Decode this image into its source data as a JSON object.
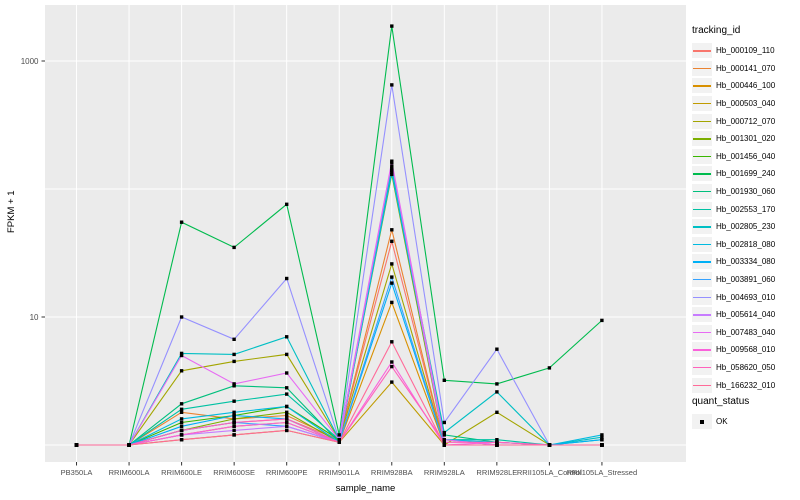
{
  "chart_data": {
    "type": "line",
    "title": "",
    "xlabel": "sample_name",
    "ylabel": "FPKM + 1",
    "y_scale": "log10",
    "ylim": [
      0.85,
      2500
    ],
    "y_tick_labels": [
      "10",
      "1000"
    ],
    "y_tick_values": [
      10,
      1000
    ],
    "y_gridline_values": [
      1,
      10,
      100,
      1000
    ],
    "grid": true,
    "panel_background": "#EBEBEB",
    "gridline_color": "#FFFFFF",
    "tick_label_color": "#4d4d4d",
    "legend_position": "right",
    "legend_titles": {
      "color": "tracking_id",
      "shape": "quant_status"
    },
    "point_marker": {
      "shape": "square",
      "color": "#000000",
      "label": "OK"
    },
    "categories": [
      "PB350LA",
      "RRIM600LA",
      "RRIM600LE",
      "RRIM600SE",
      "RRIM600PE",
      "RRIM901LA",
      "RRIM928BA",
      "RRIM928LA",
      "RRIM928LE",
      "RRII105LA_Control",
      "RRII105LA_Stressed"
    ],
    "series": [
      {
        "name": "Hb_000109_110",
        "color": "#F8766D",
        "values": [
          1,
          1,
          1.3,
          1.5,
          1.6,
          1.1,
          39,
          1,
          1,
          1,
          1
        ]
      },
      {
        "name": "Hb_000141_070",
        "color": "#EA8331",
        "values": [
          1,
          1,
          1.8,
          1.6,
          1.7,
          1.1,
          48,
          1,
          1,
          1,
          1
        ]
      },
      {
        "name": "Hb_000446_100",
        "color": "#D89000",
        "values": [
          1,
          1,
          1.2,
          1.4,
          1.5,
          1.05,
          13,
          1,
          1,
          1,
          1
        ]
      },
      {
        "name": "Hb_000503_040",
        "color": "#C09B00",
        "values": [
          1,
          1,
          1.1,
          1.2,
          1.3,
          1.05,
          3.1,
          1,
          1,
          1,
          1
        ]
      },
      {
        "name": "Hb_000712_070",
        "color": "#A3A500",
        "values": [
          1,
          1,
          3.8,
          4.5,
          5.1,
          1.1,
          26,
          1,
          1.8,
          1,
          1
        ]
      },
      {
        "name": "Hb_001301_020",
        "color": "#7CAE00",
        "values": [
          1,
          1,
          1.3,
          1.6,
          1.8,
          1.05,
          130,
          1,
          1,
          1,
          1
        ]
      },
      {
        "name": "Hb_001456_040",
        "color": "#39B600",
        "values": [
          1,
          1,
          1.5,
          1.7,
          2,
          1.1,
          145,
          1.1,
          1,
          1,
          1
        ]
      },
      {
        "name": "Hb_001699_240",
        "color": "#00BB4E",
        "values": [
          1,
          1,
          55,
          35,
          76,
          1.2,
          1875,
          3.2,
          3,
          4,
          9.4
        ]
      },
      {
        "name": "Hb_001930_060",
        "color": "#00BF7D",
        "values": [
          1,
          1,
          2.1,
          2.9,
          2.8,
          1.05,
          140,
          1.2,
          1.05,
          1,
          1
        ]
      },
      {
        "name": "Hb_002553_170",
        "color": "#00C1A3",
        "values": [
          1,
          1,
          1.9,
          2.2,
          2.5,
          1.1,
          150,
          1.1,
          1.1,
          1,
          1.1
        ]
      },
      {
        "name": "Hb_002805_230",
        "color": "#00BFC4",
        "values": [
          1,
          1,
          5.2,
          5.1,
          7,
          1.1,
          140,
          1.25,
          2.6,
          1,
          1.15
        ]
      },
      {
        "name": "Hb_002818_080",
        "color": "#00BAE0",
        "values": [
          1,
          1,
          1.6,
          1.8,
          2,
          1.05,
          135,
          1.1,
          1.05,
          1,
          1.2
        ]
      },
      {
        "name": "Hb_003334_080",
        "color": "#00B0F6",
        "values": [
          1,
          1,
          1.4,
          1.7,
          1.6,
          1.05,
          18.4,
          1,
          1,
          1,
          1.1
        ]
      },
      {
        "name": "Hb_003891_060",
        "color": "#35A2FF",
        "values": [
          1,
          1,
          1.3,
          1.5,
          1.4,
          1.05,
          20.5,
          1,
          1,
          1,
          1
        ]
      },
      {
        "name": "Hb_004693_010",
        "color": "#9590FF",
        "values": [
          1,
          1,
          10,
          6.7,
          20,
          1.1,
          650,
          1.5,
          5.6,
          1,
          1
        ]
      },
      {
        "name": "Hb_005614_040",
        "color": "#C77CFF",
        "values": [
          1,
          1,
          1.2,
          1.3,
          1.4,
          1.05,
          160,
          1,
          1,
          1,
          1
        ]
      },
      {
        "name": "Hb_007483_040",
        "color": "#E76BF3",
        "values": [
          1,
          1,
          5,
          3,
          3.65,
          1.1,
          165,
          1.1,
          1,
          1,
          1
        ]
      },
      {
        "name": "Hb_009568_010",
        "color": "#FA62DB",
        "values": [
          1,
          1,
          1.2,
          1.4,
          1.5,
          1.05,
          4.45,
          1,
          1.05,
          1,
          1
        ]
      },
      {
        "name": "Hb_058620_050",
        "color": "#FF62BC",
        "values": [
          1,
          1,
          1.3,
          1.5,
          1.6,
          1.05,
          4.1,
          1.05,
          1.05,
          1,
          1
        ]
      },
      {
        "name": "Hb_166232_010",
        "color": "#FF6A98",
        "values": [
          1,
          1,
          1.1,
          1.2,
          1.3,
          1.05,
          6.4,
          1,
          1,
          1,
          1
        ]
      }
    ]
  }
}
